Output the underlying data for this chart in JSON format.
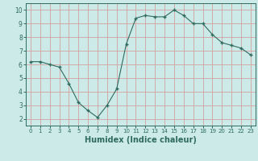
{
  "x": [
    0,
    1,
    2,
    3,
    4,
    5,
    6,
    7,
    8,
    9,
    10,
    11,
    12,
    13,
    14,
    15,
    16,
    17,
    18,
    19,
    20,
    21,
    22,
    23
  ],
  "y": [
    6.2,
    6.2,
    6.0,
    5.8,
    4.6,
    3.2,
    2.6,
    2.1,
    3.0,
    4.2,
    7.5,
    9.4,
    9.6,
    9.5,
    9.5,
    10.0,
    9.6,
    9.0,
    9.0,
    8.2,
    7.6,
    7.4,
    7.2,
    6.7
  ],
  "xlabel": "Humidex (Indice chaleur)",
  "ylim": [
    1.5,
    10.5
  ],
  "xlim": [
    -0.5,
    23.5
  ],
  "bg_color": "#cceae8",
  "grid_color": "#d4a0a0",
  "line_color": "#2e6b5e",
  "marker_color": "#2e6b5e",
  "yticks": [
    2,
    3,
    4,
    5,
    6,
    7,
    8,
    9,
    10
  ],
  "xticks": [
    0,
    1,
    2,
    3,
    4,
    5,
    6,
    7,
    8,
    9,
    10,
    11,
    12,
    13,
    14,
    15,
    16,
    17,
    18,
    19,
    20,
    21,
    22,
    23
  ]
}
